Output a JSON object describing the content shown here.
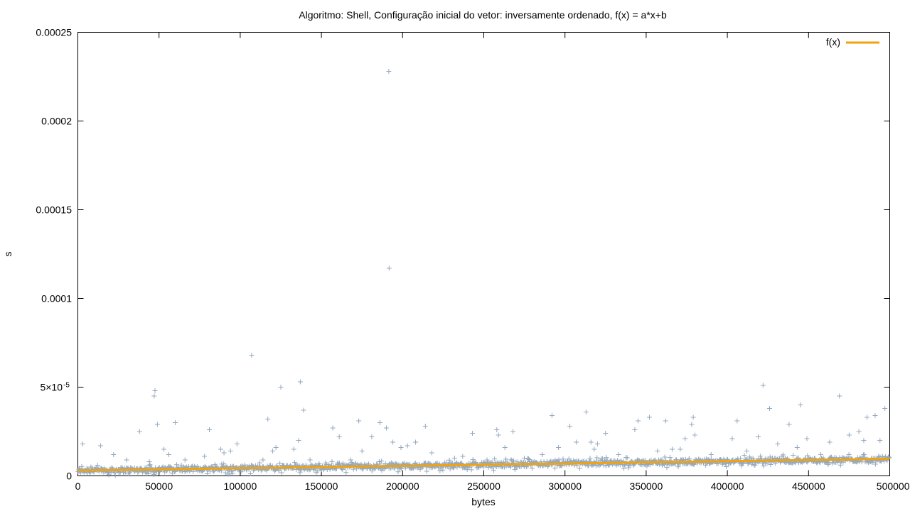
{
  "chart_data": {
    "type": "scatter",
    "title": "Algoritmo: Shell, Configuração inicial do vetor: inversamente ordenado, f(x) = a*x+b",
    "xlabel": "bytes",
    "ylabel": "s",
    "xlim": [
      0,
      500000
    ],
    "ylim": [
      0,
      0.00025
    ],
    "x_ticks": [
      "0",
      "50000",
      "100000",
      "150000",
      "200000",
      "250000",
      "300000",
      "350000",
      "400000",
      "450000",
      "500000"
    ],
    "y_ticks": [
      {
        "value": 0,
        "label": "0"
      },
      {
        "value": 5e-05,
        "label": "5×10",
        "exp": "-5"
      },
      {
        "value": 0.0001,
        "label": "0.0001"
      },
      {
        "value": 0.00015,
        "label": "0.00015"
      },
      {
        "value": 0.0002,
        "label": "0.0002"
      },
      {
        "value": 0.00025,
        "label": "0.00025"
      }
    ],
    "grid": false,
    "legend": {
      "position": "top-right",
      "entries": [
        "f(x)"
      ]
    },
    "series": [
      {
        "type": "scatter",
        "marker": "+",
        "color": "#94a8bd",
        "points": [
          [
            1000,
            2.5e-06
          ],
          [
            3000,
            1.8e-05
          ],
          [
            8000,
            5e-06
          ],
          [
            14000,
            1.7e-05
          ],
          [
            22000,
            1.2e-05
          ],
          [
            30000,
            9e-06
          ],
          [
            38000,
            2.5e-05
          ],
          [
            44000,
            8e-06
          ],
          [
            47000,
            4.5e-05
          ],
          [
            47500,
            4.8e-05
          ],
          [
            49000,
            2.9e-05
          ],
          [
            53000,
            1.5e-05
          ],
          [
            56000,
            1.2e-05
          ],
          [
            60000,
            3e-05
          ],
          [
            66000,
            9e-06
          ],
          [
            78000,
            1.1e-05
          ],
          [
            81000,
            2.6e-05
          ],
          [
            88000,
            1.5e-05
          ],
          [
            90000,
            1.3e-05
          ],
          [
            94000,
            1.4e-05
          ],
          [
            98000,
            1.8e-05
          ],
          [
            107000,
            6.8e-05
          ],
          [
            114000,
            9e-06
          ],
          [
            117000,
            3.2e-05
          ],
          [
            120000,
            1.4e-05
          ],
          [
            122000,
            1.6e-05
          ],
          [
            125000,
            5e-05
          ],
          [
            133000,
            1.5e-05
          ],
          [
            136000,
            2e-05
          ],
          [
            137000,
            5.3e-05
          ],
          [
            139000,
            3.7e-05
          ],
          [
            143000,
            9e-06
          ],
          [
            157000,
            2.7e-05
          ],
          [
            161000,
            2.2e-05
          ],
          [
            168000,
            9e-06
          ],
          [
            173000,
            3.1e-05
          ],
          [
            175000,
            1.4e-05
          ],
          [
            181000,
            2.2e-05
          ],
          [
            186000,
            3e-05
          ],
          [
            190000,
            2.7e-05
          ],
          [
            191500,
            0.000228
          ],
          [
            191700,
            0.000117
          ],
          [
            194000,
            1.9e-05
          ],
          [
            199000,
            1.6e-05
          ],
          [
            203000,
            1.7e-05
          ],
          [
            208000,
            1.9e-05
          ],
          [
            214000,
            2.8e-05
          ],
          [
            218000,
            1.3e-05
          ],
          [
            232000,
            1e-05
          ],
          [
            237000,
            1.1e-05
          ],
          [
            243000,
            2.4e-05
          ],
          [
            252000,
            9e-06
          ],
          [
            258000,
            2.6e-05
          ],
          [
            259000,
            2.3e-05
          ],
          [
            263000,
            1.6e-05
          ],
          [
            268000,
            2.5e-05
          ],
          [
            275000,
            1e-05
          ],
          [
            286000,
            1.2e-05
          ],
          [
            292000,
            3.4e-05
          ],
          [
            296000,
            1.6e-05
          ],
          [
            303000,
            2.8e-05
          ],
          [
            307000,
            1.9e-05
          ],
          [
            313000,
            3.6e-05
          ],
          [
            316000,
            1.9e-05
          ],
          [
            318000,
            1.5e-05
          ],
          [
            320000,
            1.8e-05
          ],
          [
            325000,
            2.4e-05
          ],
          [
            333000,
            1.2e-05
          ],
          [
            343000,
            2.6e-05
          ],
          [
            345000,
            3.1e-05
          ],
          [
            352000,
            3.3e-05
          ],
          [
            357000,
            1.4e-05
          ],
          [
            362000,
            3.1e-05
          ],
          [
            366000,
            1.5e-05
          ],
          [
            371000,
            1.5e-05
          ],
          [
            374000,
            2.1e-05
          ],
          [
            378000,
            2.9e-05
          ],
          [
            379000,
            3.3e-05
          ],
          [
            380000,
            2.3e-05
          ],
          [
            390000,
            1.2e-05
          ],
          [
            403000,
            2.1e-05
          ],
          [
            406000,
            3.1e-05
          ],
          [
            412000,
            1.4e-05
          ],
          [
            419000,
            2.2e-05
          ],
          [
            422000,
            5.1e-05
          ],
          [
            426000,
            3.8e-05
          ],
          [
            431000,
            1.8e-05
          ],
          [
            438000,
            2.9e-05
          ],
          [
            443000,
            1.6e-05
          ],
          [
            445000,
            4e-05
          ],
          [
            449000,
            2.1e-05
          ],
          [
            463000,
            1.9e-05
          ],
          [
            469000,
            4.5e-05
          ],
          [
            475000,
            2.3e-05
          ],
          [
            481000,
            2.5e-05
          ],
          [
            484000,
            2e-05
          ],
          [
            486000,
            3.3e-05
          ],
          [
            491000,
            3.4e-05
          ],
          [
            494000,
            2e-05
          ],
          [
            497000,
            3.8e-05
          ]
        ]
      },
      {
        "type": "scatter",
        "marker": "+",
        "color": "#94a8bd",
        "dense_band": {
          "x_start": 0,
          "x_end": 500000,
          "count": 1400,
          "center_y_start": 3e-06,
          "center_y_end": 9.5e-06,
          "spread": 3e-06
        }
      },
      {
        "name": "f(x)",
        "type": "line",
        "color": "#f2a20e",
        "a": 1.32e-11,
        "b": 3e-06
      }
    ]
  }
}
